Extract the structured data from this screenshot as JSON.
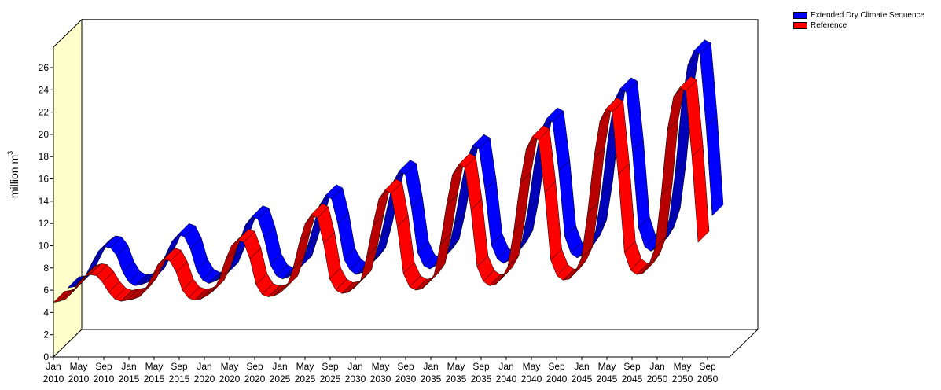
{
  "chart_data": {
    "type": "line",
    "style": "3d-ribbon",
    "ylabel": "million m",
    "ylabel_superscript": "3",
    "ylim": [
      0,
      27
    ],
    "yticks": [
      0,
      2,
      4,
      6,
      8,
      10,
      12,
      14,
      16,
      18,
      20,
      22,
      24,
      26
    ],
    "x_tick_labels": [
      {
        "month": "Jan",
        "year": "2010"
      },
      {
        "month": "May",
        "year": "2010"
      },
      {
        "month": "Sep",
        "year": "2010"
      },
      {
        "month": "Jan",
        "year": "2015"
      },
      {
        "month": "May",
        "year": "2015"
      },
      {
        "month": "Sep",
        "year": "2015"
      },
      {
        "month": "Jan",
        "year": "2020"
      },
      {
        "month": "May",
        "year": "2020"
      },
      {
        "month": "Sep",
        "year": "2020"
      },
      {
        "month": "Jan",
        "year": "2025"
      },
      {
        "month": "May",
        "year": "2025"
      },
      {
        "month": "Sep",
        "year": "2025"
      },
      {
        "month": "Jan",
        "year": "2030"
      },
      {
        "month": "May",
        "year": "2030"
      },
      {
        "month": "Sep",
        "year": "2030"
      },
      {
        "month": "Jan",
        "year": "2035"
      },
      {
        "month": "May",
        "year": "2035"
      },
      {
        "month": "Sep",
        "year": "2035"
      },
      {
        "month": "Jan",
        "year": "2040"
      },
      {
        "month": "May",
        "year": "2040"
      },
      {
        "month": "Sep",
        "year": "2040"
      },
      {
        "month": "Jan",
        "year": "2045"
      },
      {
        "month": "May",
        "year": "2045"
      },
      {
        "month": "Sep",
        "year": "2045"
      },
      {
        "month": "Jan",
        "year": "2050"
      },
      {
        "month": "May",
        "year": "2050"
      },
      {
        "month": "Sep",
        "year": "2050"
      }
    ],
    "grid": false,
    "legend_position": "top-right",
    "back_wall_color": "#ffffcc",
    "series": [
      {
        "name": "Extended Dry Climate Sequence",
        "color": "#0000ff",
        "values": [
          5.0,
          5.1,
          5.3,
          6.2,
          7.3,
          8.3,
          8.7,
          8.6,
          7.9,
          6.4,
          5.5,
          5.2,
          5.3,
          5.5,
          5.8,
          6.9,
          8.0,
          9.2,
          9.8,
          9.6,
          8.5,
          6.6,
          5.7,
          5.4,
          5.6,
          5.9,
          6.3,
          7.6,
          9.2,
          10.7,
          11.4,
          11.2,
          9.5,
          7.1,
          6.1,
          5.8,
          6.0,
          6.4,
          6.9,
          8.6,
          10.5,
          12.4,
          13.3,
          13.0,
          10.8,
          7.6,
          6.6,
          6.2,
          6.4,
          6.9,
          7.6,
          9.6,
          12.1,
          14.5,
          15.5,
          15.2,
          12.2,
          8.2,
          7.0,
          6.7,
          7.0,
          7.6,
          8.4,
          10.8,
          13.9,
          16.6,
          17.8,
          17.5,
          13.8,
          8.9,
          7.6,
          7.2,
          7.5,
          8.2,
          9.2,
          12.1,
          16.0,
          19.0,
          20.2,
          19.9,
          15.5,
          9.6,
          8.1,
          7.7,
          8.0,
          8.8,
          10.1,
          13.6,
          18.3,
          21.8,
          22.9,
          22.6,
          17.3,
          10.4,
          8.7,
          8.3,
          8.6,
          9.5,
          11.2,
          15.5,
          21.5,
          25.0,
          26.3,
          26.0,
          19.5,
          11.5
        ]
      },
      {
        "name": "Reference",
        "color": "#ff0000",
        "values": [
          4.9,
          5.0,
          5.2,
          5.8,
          6.6,
          7.2,
          7.4,
          7.3,
          6.7,
          5.8,
          5.2,
          5.0,
          5.1,
          5.2,
          5.4,
          6.1,
          7.2,
          8.3,
          8.8,
          8.6,
          7.6,
          6.0,
          5.3,
          5.1,
          5.2,
          5.5,
          5.9,
          7.0,
          8.7,
          10.0,
          10.5,
          10.3,
          8.8,
          6.5,
          5.6,
          5.4,
          5.5,
          5.8,
          6.3,
          7.9,
          10.2,
          12.0,
          12.8,
          12.5,
          10.2,
          7.0,
          6.0,
          5.7,
          5.8,
          6.2,
          6.8,
          9.0,
          11.8,
          14.2,
          15.0,
          14.7,
          11.7,
          7.5,
          6.3,
          6.0,
          6.1,
          6.6,
          7.4,
          10.1,
          13.6,
          16.4,
          17.3,
          17.0,
          13.2,
          8.1,
          6.8,
          6.4,
          6.5,
          7.1,
          8.1,
          11.4,
          15.6,
          18.7,
          19.8,
          19.5,
          14.8,
          8.7,
          7.3,
          6.9,
          7.0,
          7.7,
          8.9,
          12.9,
          17.8,
          21.2,
          22.3,
          22.0,
          16.4,
          9.4,
          7.8,
          7.4,
          7.5,
          8.3,
          9.8,
          14.6,
          20.4,
          23.4,
          24.2,
          23.9,
          18.0,
          10.3
        ]
      }
    ]
  }
}
